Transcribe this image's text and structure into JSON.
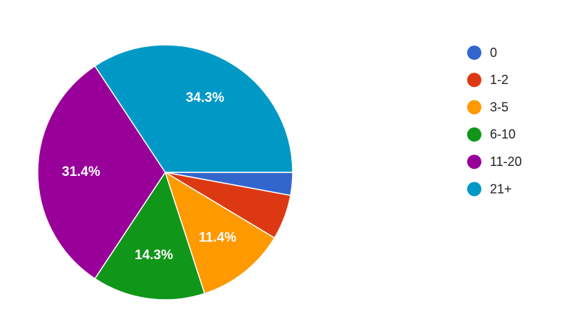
{
  "chart_data": {
    "type": "pie",
    "categories": [
      "0",
      "1-2",
      "3-5",
      "6-10",
      "11-20",
      "21+"
    ],
    "values": [
      2.9,
      5.7,
      11.4,
      14.3,
      31.4,
      34.3
    ],
    "value_labels": [
      null,
      null,
      "11.4%",
      "14.3%",
      "31.4%",
      "34.3%"
    ],
    "colors": [
      "#3366cc",
      "#dc3912",
      "#ff9900",
      "#109618",
      "#990099",
      "#0099c6"
    ],
    "legend": "right"
  }
}
